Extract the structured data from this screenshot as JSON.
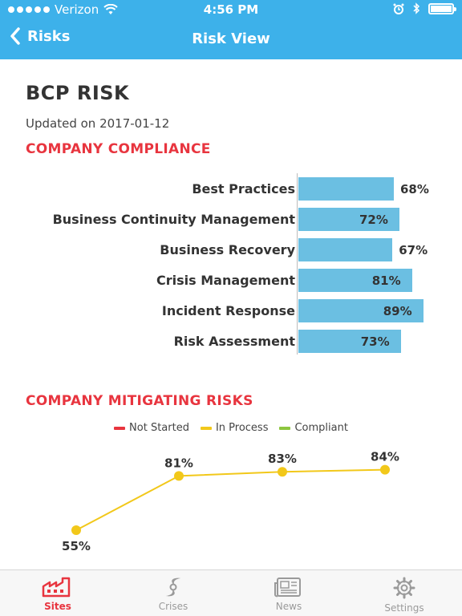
{
  "status": {
    "carrier": "Verizon",
    "time": "4:56 PM"
  },
  "nav": {
    "back_label": "Risks",
    "title": "Risk View"
  },
  "page": {
    "title": "BCP RISK",
    "updated": "Updated on 2017-01-12"
  },
  "sections": {
    "compliance": "COMPANY COMPLIANCE",
    "mitigating": "COMPANY MITIGATING RISKS"
  },
  "colors": {
    "header": "#3db1ea",
    "accent": "#e8353f",
    "bar": "#6bbfe2",
    "not_started": "#e8353f",
    "in_process": "#f2c81a",
    "compliant": "#8dc63f"
  },
  "chart_data": [
    {
      "type": "bar",
      "orientation": "horizontal",
      "title": "COMPANY COMPLIANCE",
      "categories": [
        "Best Practices",
        "Business Continuity Management",
        "Business Recovery",
        "Crisis Management",
        "Incident Response",
        "Risk Assessment"
      ],
      "values": [
        68,
        72,
        67,
        81,
        89,
        73
      ],
      "value_labels": [
        "68%",
        "72%",
        "67%",
        "81%",
        "89%",
        "73%"
      ],
      "xlim": [
        0,
        100
      ]
    },
    {
      "type": "line",
      "title": "COMPANY MITIGATING RISKS",
      "legend": [
        "Not Started",
        "In Process",
        "Compliant"
      ],
      "legend_placement": "top-center",
      "series": [
        {
          "name": "In Process",
          "values": [
            55,
            81,
            83,
            84
          ],
          "value_labels": [
            "55%",
            "81%",
            "83%",
            "84%"
          ]
        }
      ],
      "ylim": [
        40,
        90
      ]
    }
  ],
  "tabs": [
    {
      "label": "Sites",
      "icon": "factory-icon",
      "active": true
    },
    {
      "label": "Crises",
      "icon": "hurricane-icon",
      "active": false
    },
    {
      "label": "News",
      "icon": "newspaper-icon",
      "active": false
    },
    {
      "label": "Settings",
      "icon": "gear-icon",
      "active": false
    }
  ]
}
